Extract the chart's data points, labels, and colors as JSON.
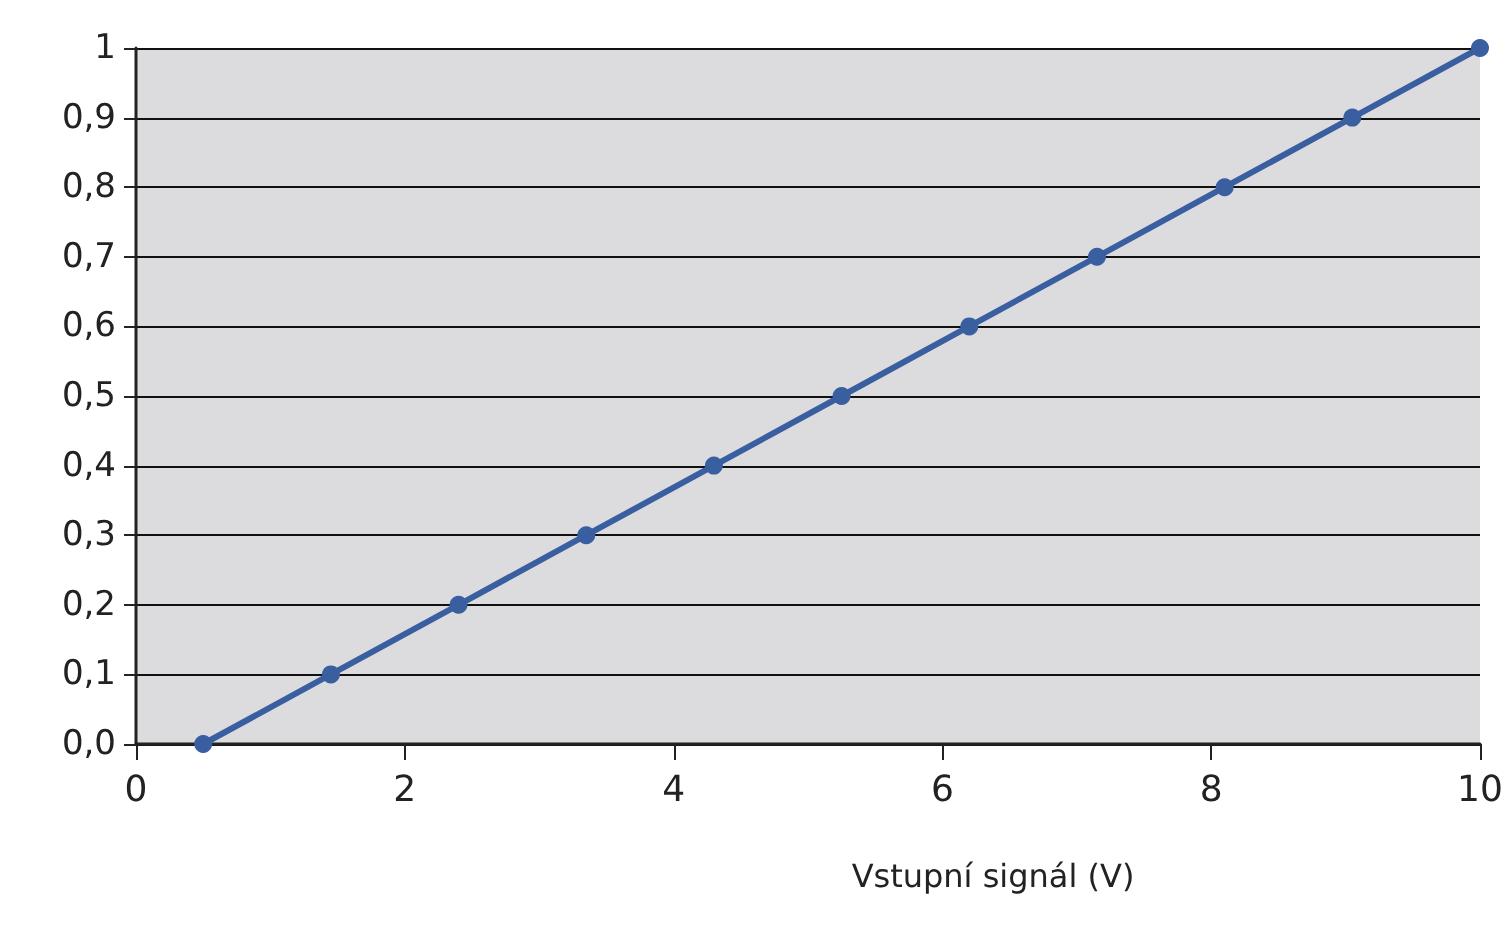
{
  "chart_data": {
    "type": "line",
    "xlabel": "Vstupní signál (V)",
    "x": [
      0.5,
      1.45,
      2.4,
      3.35,
      4.3,
      5.25,
      6.2,
      7.15,
      8.1,
      9.05,
      10
    ],
    "series": [
      {
        "color": "#3a5fa0",
        "values": [
          0,
          0.1,
          0.2,
          0.3,
          0.4,
          0.5,
          0.6,
          0.7,
          0.8,
          0.9,
          1
        ]
      }
    ],
    "xlim": [
      0,
      10
    ],
    "xticks": [
      0,
      2,
      4,
      6,
      8,
      10
    ],
    "ylim": [
      0,
      1
    ],
    "yticks": [
      {
        "value": 0,
        "label": "0,0"
      },
      {
        "value": 0.1,
        "label": "0,1"
      },
      {
        "value": 0.2,
        "label": "0,2"
      },
      {
        "value": 0.3,
        "label": "0,3"
      },
      {
        "value": 0.4,
        "label": "0,4"
      },
      {
        "value": 0.5,
        "label": "0,5"
      },
      {
        "value": 0.6,
        "label": "0,6"
      },
      {
        "value": 0.7,
        "label": "0,7"
      },
      {
        "value": 0.8,
        "label": "0,8"
      },
      {
        "value": 0.9,
        "label": "0,9"
      },
      1
    ],
    "grid": "y",
    "marker": "circle",
    "line_style": "solid"
  }
}
